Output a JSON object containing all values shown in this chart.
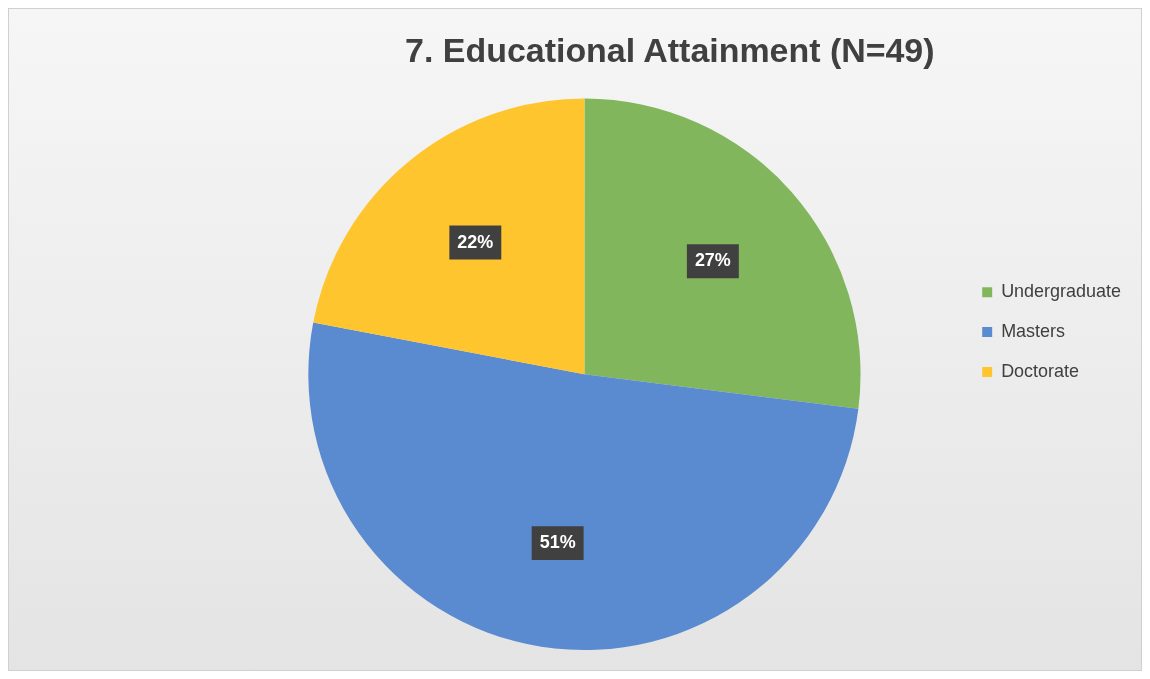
{
  "chart_data": {
    "type": "pie",
    "title": "7. Educational Attainment (N=49)",
    "categories": [
      "Undergraduate",
      "Masters",
      "Doctorate"
    ],
    "values": [
      27,
      51,
      22
    ],
    "colors": [
      "#82b65c",
      "#5a8ad0",
      "#fec52e"
    ],
    "value_labels": [
      "27%",
      "51%",
      "22%"
    ],
    "legend": "right"
  }
}
